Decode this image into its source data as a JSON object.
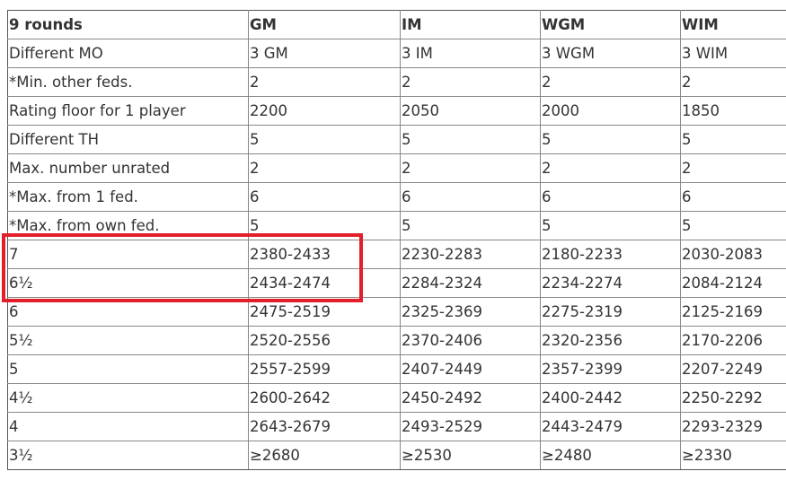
{
  "table": {
    "headers": [
      "9 rounds",
      "GM",
      "IM",
      "WGM",
      "WIM"
    ],
    "rows": [
      [
        "Different MO",
        "3 GM",
        "3 IM",
        "3 WGM",
        "3 WIM"
      ],
      [
        "*Min. other feds.",
        "2",
        "2",
        "2",
        "2"
      ],
      [
        "Rating floor for 1  player",
        "2200",
        "2050",
        "2000",
        "1850"
      ],
      [
        "Different TH",
        "5",
        "5",
        "5",
        "5"
      ],
      [
        "Max. number unrated",
        "2",
        "2",
        "2",
        "2"
      ],
      [
        "*Max. from 1 fed.",
        "6",
        "6",
        "6",
        "6"
      ],
      [
        "*Max. from own fed.",
        "5",
        "5",
        "5",
        "5"
      ],
      [
        "7",
        "2380-2433",
        "2230-2283",
        "2180-2233",
        "2030-2083"
      ],
      [
        "6½",
        "2434-2474",
        "2284-2324",
        "2234-2274",
        "2084-2124"
      ],
      [
        "6",
        "2475-2519",
        "2325-2369",
        "2275-2319",
        "2125-2169"
      ],
      [
        "5½",
        "2520-2556",
        "2370-2406",
        "2320-2356",
        "2170-2206"
      ],
      [
        "5",
        "2557-2599",
        "2407-2449",
        "2357-2399",
        "2207-2249"
      ],
      [
        "4½",
        "2600-2642",
        "2450-2492",
        "2400-2442",
        "2250-2292"
      ],
      [
        "4",
        "2643-2679",
        "2493-2529",
        "2443-2479",
        "2293-2329"
      ],
      [
        "3½",
        "≥2680",
        "≥2530",
        "≥2480",
        "≥2330"
      ]
    ]
  },
  "highlight": {
    "color": "#e21f2b"
  }
}
